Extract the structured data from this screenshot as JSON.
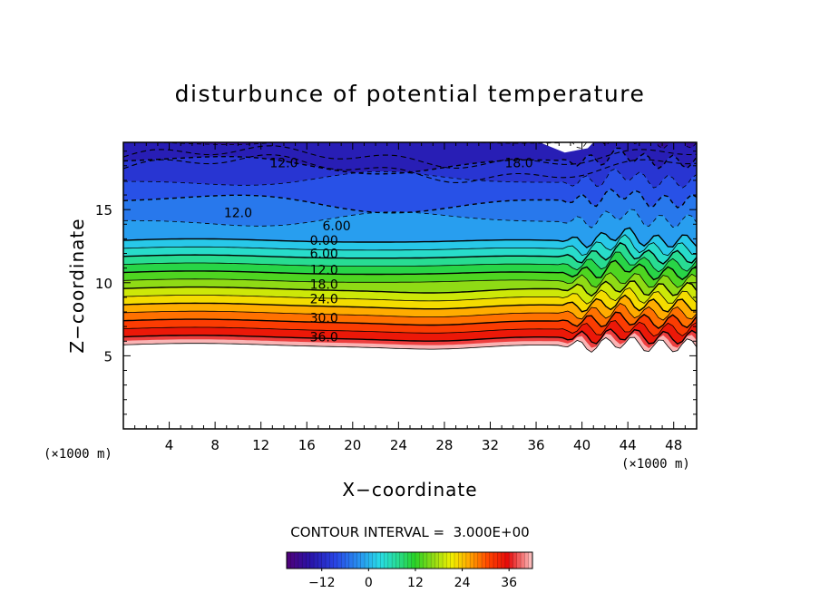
{
  "chart_data": {
    "type": "contour",
    "title": "disturbunce of potential temperature",
    "xlabel": "X−coordinate",
    "ylabel": "Z−coordinate",
    "x_unit_left": "(×1000 m)",
    "x_unit_right": "(×1000 m)",
    "xlim": [
      0,
      50
    ],
    "ylim": [
      0,
      19.6
    ],
    "x_ticks": [
      4,
      8,
      12,
      16,
      20,
      24,
      28,
      32,
      36,
      40,
      44,
      48
    ],
    "x_tick_labels": [
      "4",
      "8",
      "12",
      "16",
      "20",
      "24",
      "28",
      "32",
      "36",
      "40",
      "44",
      "48"
    ],
    "y_ticks": [
      5,
      10,
      15
    ],
    "y_tick_labels": [
      "5",
      "10",
      "15"
    ],
    "contour_interval_text": "CONTOUR INTERVAL =  3.000E+00",
    "contour_interval": 3.0,
    "contour_labels": [
      {
        "text": "12.0",
        "x": 14.0,
        "z": 18.2
      },
      {
        "text": "18.0",
        "x": 34.5,
        "z": 18.2
      },
      {
        "text": "12.0",
        "x": 10.0,
        "z": 14.8
      },
      {
        "text": "6.00",
        "x": 18.6,
        "z": 13.9
      },
      {
        "text": "0.00",
        "x": 17.5,
        "z": 12.9
      },
      {
        "text": "6.00",
        "x": 17.5,
        "z": 12.0
      },
      {
        "text": "12.0",
        "x": 17.5,
        "z": 10.9
      },
      {
        "text": "18.0",
        "x": 17.5,
        "z": 9.9
      },
      {
        "text": "24.0",
        "x": 17.5,
        "z": 8.9
      },
      {
        "text": "30.0",
        "x": 17.5,
        "z": 7.6
      },
      {
        "text": "36.0",
        "x": 17.5,
        "z": 6.3
      }
    ],
    "field_levels": [
      -18,
      -15,
      -12,
      -9,
      -6,
      -3,
      0,
      3,
      6,
      9,
      12,
      15,
      18,
      21,
      24,
      27,
      30,
      33,
      36,
      39
    ],
    "colorbar": {
      "min": -21,
      "max": 42,
      "tick_values": [
        -12,
        0,
        12,
        24,
        36
      ],
      "tick_labels": [
        "−12",
        "0",
        "12",
        "24",
        "36"
      ]
    },
    "grid": false,
    "legend": "none"
  }
}
